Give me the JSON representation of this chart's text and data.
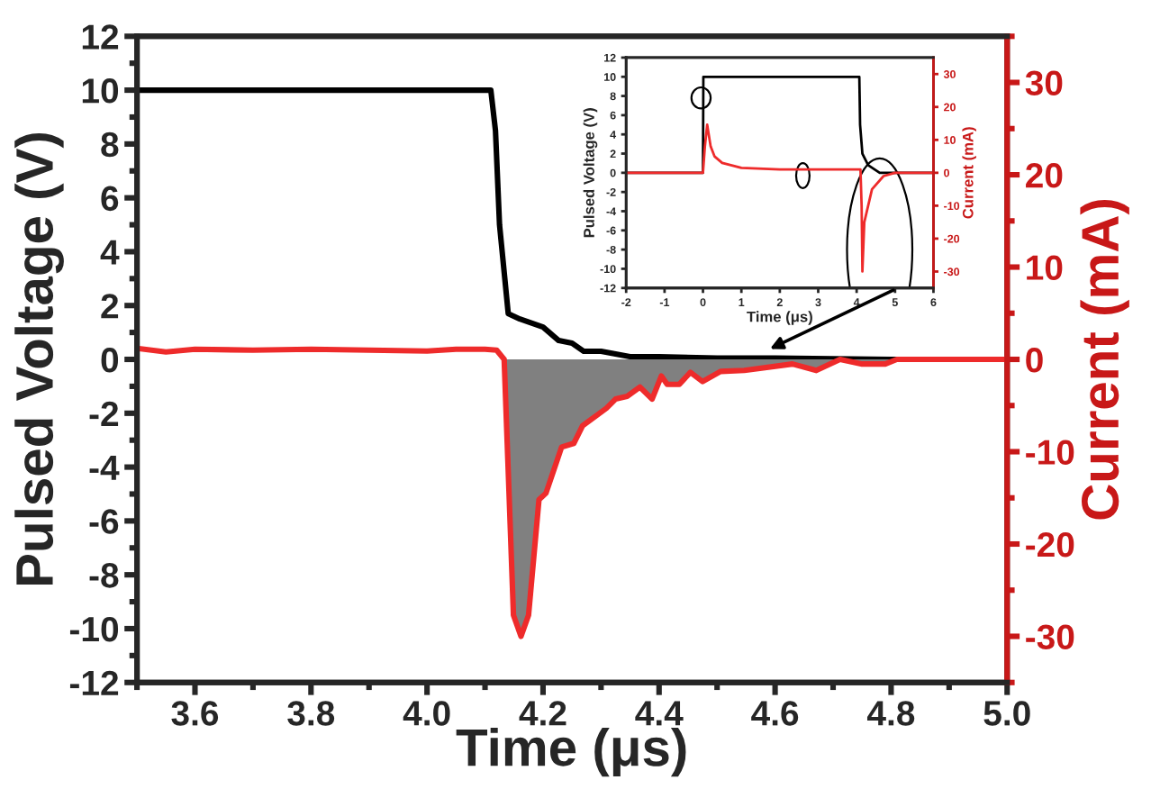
{
  "chart_data": [
    {
      "type": "line",
      "xlabel": "Time (μs)",
      "ylabel": "Pulsed Voltage (V)",
      "y2label": "Current (mA)",
      "xlim": [
        3.5,
        5.0
      ],
      "xticks": [
        {
          "value": 3.6,
          "label": "3.6"
        },
        {
          "value": 3.8,
          "label": "3.8"
        },
        {
          "value": 4.0,
          "label": "4.0"
        },
        {
          "value": 4.2,
          "label": "4.2"
        },
        {
          "value": 4.4,
          "label": "4.4"
        },
        {
          "value": 4.6,
          "label": "4.6"
        },
        {
          "value": 4.8,
          "label": "4.8"
        },
        {
          "value": 5.0,
          "label": "5.0"
        }
      ],
      "ylim": [
        -12,
        12
      ],
      "yticks": [
        -12,
        -10,
        -8,
        -6,
        -4,
        -2,
        0,
        2,
        4,
        6,
        8,
        10,
        12
      ],
      "y2lim": [
        -35,
        35
      ],
      "y2ticks": [
        -30,
        -20,
        -10,
        0,
        10,
        20,
        30
      ],
      "series": [
        {
          "type": "area",
          "color": "#808080",
          "axis": "y2",
          "x": [
            4.133,
            4.149,
            4.162,
            4.175,
            4.193,
            4.205,
            4.232,
            4.253,
            4.268,
            4.309,
            4.325,
            4.345,
            4.367,
            4.388,
            4.404,
            4.414,
            4.435,
            4.454,
            4.475,
            4.506,
            4.547,
            4.63,
            4.671,
            4.712,
            4.75,
            4.79,
            4.81
          ],
          "values": [
            0,
            -27.7,
            -30,
            -27.7,
            -15.2,
            -14.5,
            -9.5,
            -9.1,
            -7.2,
            -5.3,
            -4.3,
            -4.0,
            -3.0,
            -4.3,
            -1.8,
            -2.7,
            -2.7,
            -1.4,
            -2.4,
            -1.3,
            -1.2,
            -0.5,
            -1.2,
            0,
            -0.5,
            -0.5,
            0
          ]
        },
        {
          "color": "#000000",
          "axis": "y",
          "x": [
            3.5,
            3.6,
            3.7,
            3.8,
            3.9,
            4.0,
            4.11,
            4.118,
            4.125,
            4.14,
            4.16,
            4.2,
            4.227,
            4.25,
            4.27,
            4.3,
            4.35,
            4.4,
            4.5,
            4.6,
            4.8,
            5.0
          ],
          "values": [
            10,
            10,
            10,
            10,
            10,
            10,
            10,
            8.5,
            5,
            1.7,
            1.5,
            1.2,
            0.7,
            0.6,
            0.3,
            0.3,
            0.1,
            0.1,
            0.05,
            0.05,
            0,
            0
          ]
        },
        {
          "color": "#ee2b2b",
          "axis": "y2",
          "x": [
            3.5,
            3.55,
            3.6,
            3.7,
            3.8,
            3.9,
            4.0,
            4.05,
            4.1,
            4.12,
            4.133,
            4.149,
            4.162,
            4.175,
            4.193,
            4.205,
            4.232,
            4.253,
            4.268,
            4.309,
            4.325,
            4.345,
            4.367,
            4.388,
            4.404,
            4.414,
            4.435,
            4.454,
            4.475,
            4.506,
            4.547,
            4.63,
            4.671,
            4.712,
            4.75,
            4.79,
            4.81,
            5.0
          ],
          "values": [
            1.2,
            0.8,
            1.1,
            1.0,
            1.1,
            1.0,
            0.9,
            1.1,
            1.1,
            1.0,
            0,
            -27.7,
            -30,
            -27.7,
            -15.2,
            -14.5,
            -9.5,
            -9.1,
            -7.2,
            -5.3,
            -4.3,
            -4.0,
            -3.0,
            -4.3,
            -1.8,
            -2.7,
            -2.7,
            -1.4,
            -2.4,
            -1.3,
            -1.2,
            -0.5,
            -1.2,
            0,
            -0.5,
            -0.5,
            0,
            0
          ]
        }
      ]
    },
    {
      "type": "line",
      "xlabel": "Time (μs)",
      "ylabel": "Pulsed Voltage (V)",
      "y2label": "Current (mA)",
      "xlim": [
        -2,
        6
      ],
      "xticks": [
        -2,
        -1,
        0,
        1,
        2,
        3,
        4,
        5,
        6
      ],
      "ylim": [
        -12,
        12
      ],
      "yticks": [
        -12,
        -10,
        -8,
        -6,
        -4,
        -2,
        0,
        2,
        4,
        6,
        8,
        10,
        12
      ],
      "y2lim": [
        -35,
        35
      ],
      "y2ticks": [
        -30,
        -20,
        -10,
        0,
        10,
        20,
        30
      ],
      "series": [
        {
          "color": "#000000",
          "axis": "y",
          "x": [
            -2,
            0,
            0.01,
            1,
            2,
            3,
            4.07,
            4.09,
            4.15,
            4.3,
            4.6,
            6
          ],
          "values": [
            0,
            0,
            10,
            10,
            10,
            10,
            10,
            5,
            2,
            0.8,
            0,
            0
          ]
        },
        {
          "color": "#ee2b2b",
          "axis": "y2",
          "x": [
            -2,
            0,
            0.05,
            0.11,
            0.2,
            0.3,
            0.5,
            1,
            2,
            3,
            4.1,
            4.13,
            4.15,
            4.2,
            4.4,
            4.7,
            5,
            6
          ],
          "values": [
            0,
            0,
            8,
            14.6,
            8,
            5,
            3,
            1.5,
            1,
            1,
            1,
            -10,
            -30,
            -15,
            -5,
            -1,
            0,
            0
          ]
        }
      ]
    }
  ]
}
